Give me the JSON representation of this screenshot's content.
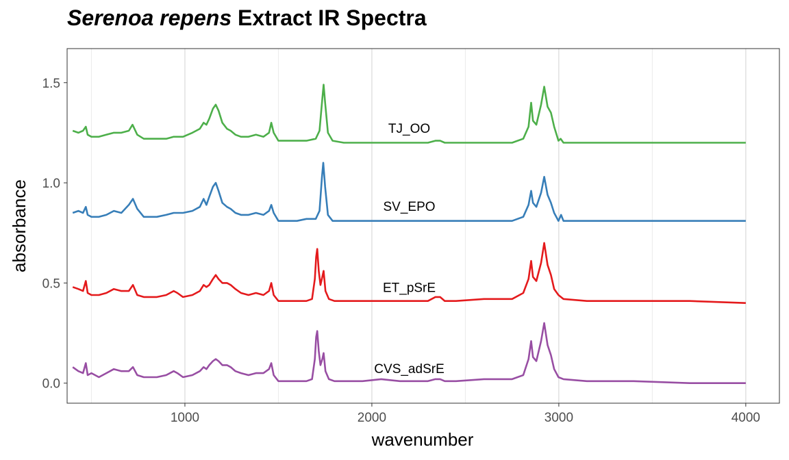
{
  "title": {
    "italic": "Serenoa repens",
    "rest": " Extract IR Spectra"
  },
  "chart_data": {
    "type": "line",
    "title": "Serenoa repens Extract IR Spectra",
    "xlabel": "wavenumber",
    "ylabel": "absorbance",
    "xlim": [
      370,
      4180
    ],
    "ylim": [
      -0.1,
      1.67
    ],
    "x_ticks": [
      1000,
      2000,
      3000,
      4000
    ],
    "y_ticks": [
      0.0,
      0.5,
      1.0,
      1.5
    ],
    "x_tick_labels": [
      "1000",
      "2000",
      "3000",
      "4000"
    ],
    "y_tick_labels": [
      "0.0",
      "0.5",
      "1.0",
      "1.5"
    ],
    "grid": true,
    "series": [
      {
        "name": "TJ_OO",
        "color": "#4DAF4A",
        "label_x": 2200,
        "label_y": 1.25,
        "points": [
          [
            400,
            1.26
          ],
          [
            430,
            1.25
          ],
          [
            455,
            1.26
          ],
          [
            470,
            1.28
          ],
          [
            480,
            1.24
          ],
          [
            500,
            1.23
          ],
          [
            540,
            1.23
          ],
          [
            580,
            1.24
          ],
          [
            620,
            1.25
          ],
          [
            660,
            1.25
          ],
          [
            700,
            1.26
          ],
          [
            720,
            1.29
          ],
          [
            745,
            1.24
          ],
          [
            780,
            1.22
          ],
          [
            850,
            1.22
          ],
          [
            900,
            1.22
          ],
          [
            940,
            1.23
          ],
          [
            990,
            1.23
          ],
          [
            1040,
            1.25
          ],
          [
            1080,
            1.27
          ],
          [
            1100,
            1.3
          ],
          [
            1115,
            1.29
          ],
          [
            1130,
            1.32
          ],
          [
            1150,
            1.37
          ],
          [
            1165,
            1.39
          ],
          [
            1180,
            1.36
          ],
          [
            1200,
            1.3
          ],
          [
            1225,
            1.27
          ],
          [
            1245,
            1.26
          ],
          [
            1270,
            1.24
          ],
          [
            1300,
            1.23
          ],
          [
            1340,
            1.23
          ],
          [
            1380,
            1.24
          ],
          [
            1420,
            1.23
          ],
          [
            1450,
            1.25
          ],
          [
            1462,
            1.3
          ],
          [
            1475,
            1.25
          ],
          [
            1500,
            1.21
          ],
          [
            1550,
            1.21
          ],
          [
            1600,
            1.21
          ],
          [
            1650,
            1.21
          ],
          [
            1700,
            1.22
          ],
          [
            1720,
            1.26
          ],
          [
            1735,
            1.42
          ],
          [
            1742,
            1.49
          ],
          [
            1750,
            1.4
          ],
          [
            1765,
            1.25
          ],
          [
            1790,
            1.21
          ],
          [
            1850,
            1.2
          ],
          [
            1950,
            1.2
          ],
          [
            2050,
            1.2
          ],
          [
            2150,
            1.2
          ],
          [
            2250,
            1.2
          ],
          [
            2300,
            1.2
          ],
          [
            2340,
            1.21
          ],
          [
            2365,
            1.21
          ],
          [
            2390,
            1.2
          ],
          [
            2450,
            1.2
          ],
          [
            2600,
            1.2
          ],
          [
            2750,
            1.2
          ],
          [
            2810,
            1.22
          ],
          [
            2838,
            1.28
          ],
          [
            2852,
            1.4
          ],
          [
            2862,
            1.31
          ],
          [
            2880,
            1.29
          ],
          [
            2905,
            1.39
          ],
          [
            2922,
            1.48
          ],
          [
            2940,
            1.38
          ],
          [
            2958,
            1.35
          ],
          [
            2975,
            1.28
          ],
          [
            2998,
            1.21
          ],
          [
            3010,
            1.22
          ],
          [
            3025,
            1.2
          ],
          [
            3150,
            1.2
          ],
          [
            3400,
            1.2
          ],
          [
            3700,
            1.2
          ],
          [
            4000,
            1.2
          ]
        ]
      },
      {
        "name": "SV_EPO",
        "color": "#377EB8",
        "label_x": 2200,
        "label_y": 0.86,
        "points": [
          [
            400,
            0.85
          ],
          [
            430,
            0.86
          ],
          [
            455,
            0.85
          ],
          [
            470,
            0.88
          ],
          [
            480,
            0.84
          ],
          [
            500,
            0.83
          ],
          [
            540,
            0.83
          ],
          [
            580,
            0.84
          ],
          [
            620,
            0.86
          ],
          [
            660,
            0.85
          ],
          [
            700,
            0.89
          ],
          [
            722,
            0.92
          ],
          [
            745,
            0.87
          ],
          [
            780,
            0.83
          ],
          [
            850,
            0.83
          ],
          [
            900,
            0.84
          ],
          [
            940,
            0.85
          ],
          [
            990,
            0.85
          ],
          [
            1040,
            0.86
          ],
          [
            1080,
            0.88
          ],
          [
            1100,
            0.92
          ],
          [
            1115,
            0.89
          ],
          [
            1130,
            0.93
          ],
          [
            1150,
            0.98
          ],
          [
            1165,
            1.0
          ],
          [
            1180,
            0.96
          ],
          [
            1200,
            0.9
          ],
          [
            1225,
            0.88
          ],
          [
            1245,
            0.87
          ],
          [
            1270,
            0.85
          ],
          [
            1300,
            0.84
          ],
          [
            1340,
            0.84
          ],
          [
            1380,
            0.85
          ],
          [
            1420,
            0.84
          ],
          [
            1450,
            0.86
          ],
          [
            1462,
            0.89
          ],
          [
            1475,
            0.85
          ],
          [
            1500,
            0.81
          ],
          [
            1550,
            0.81
          ],
          [
            1600,
            0.81
          ],
          [
            1650,
            0.82
          ],
          [
            1700,
            0.82
          ],
          [
            1720,
            0.86
          ],
          [
            1733,
            1.03
          ],
          [
            1740,
            1.1
          ],
          [
            1750,
            0.98
          ],
          [
            1765,
            0.84
          ],
          [
            1790,
            0.81
          ],
          [
            1850,
            0.81
          ],
          [
            1950,
            0.81
          ],
          [
            2050,
            0.81
          ],
          [
            2150,
            0.81
          ],
          [
            2250,
            0.81
          ],
          [
            2350,
            0.81
          ],
          [
            2450,
            0.81
          ],
          [
            2600,
            0.81
          ],
          [
            2750,
            0.81
          ],
          [
            2810,
            0.83
          ],
          [
            2838,
            0.89
          ],
          [
            2852,
            0.96
          ],
          [
            2862,
            0.9
          ],
          [
            2880,
            0.88
          ],
          [
            2905,
            0.95
          ],
          [
            2922,
            1.03
          ],
          [
            2940,
            0.94
          ],
          [
            2958,
            0.9
          ],
          [
            2975,
            0.85
          ],
          [
            2998,
            0.81
          ],
          [
            3012,
            0.84
          ],
          [
            3025,
            0.81
          ],
          [
            3150,
            0.81
          ],
          [
            3400,
            0.81
          ],
          [
            3700,
            0.81
          ],
          [
            4000,
            0.81
          ]
        ]
      },
      {
        "name": "ET_pSrE",
        "color": "#E41A1C",
        "label_x": 2200,
        "label_y": 0.455,
        "points": [
          [
            400,
            0.48
          ],
          [
            430,
            0.47
          ],
          [
            455,
            0.46
          ],
          [
            470,
            0.51
          ],
          [
            480,
            0.45
          ],
          [
            500,
            0.44
          ],
          [
            540,
            0.44
          ],
          [
            580,
            0.45
          ],
          [
            620,
            0.47
          ],
          [
            660,
            0.46
          ],
          [
            700,
            0.46
          ],
          [
            722,
            0.49
          ],
          [
            745,
            0.44
          ],
          [
            780,
            0.43
          ],
          [
            850,
            0.43
          ],
          [
            900,
            0.44
          ],
          [
            940,
            0.46
          ],
          [
            960,
            0.45
          ],
          [
            990,
            0.43
          ],
          [
            1040,
            0.44
          ],
          [
            1080,
            0.46
          ],
          [
            1100,
            0.49
          ],
          [
            1115,
            0.48
          ],
          [
            1130,
            0.49
          ],
          [
            1150,
            0.52
          ],
          [
            1165,
            0.54
          ],
          [
            1180,
            0.52
          ],
          [
            1200,
            0.5
          ],
          [
            1225,
            0.5
          ],
          [
            1245,
            0.49
          ],
          [
            1270,
            0.47
          ],
          [
            1300,
            0.45
          ],
          [
            1340,
            0.44
          ],
          [
            1380,
            0.45
          ],
          [
            1420,
            0.44
          ],
          [
            1450,
            0.46
          ],
          [
            1462,
            0.5
          ],
          [
            1475,
            0.44
          ],
          [
            1500,
            0.41
          ],
          [
            1550,
            0.41
          ],
          [
            1600,
            0.41
          ],
          [
            1650,
            0.41
          ],
          [
            1680,
            0.42
          ],
          [
            1695,
            0.52
          ],
          [
            1702,
            0.63
          ],
          [
            1708,
            0.67
          ],
          [
            1716,
            0.56
          ],
          [
            1725,
            0.49
          ],
          [
            1735,
            0.53
          ],
          [
            1742,
            0.56
          ],
          [
            1752,
            0.46
          ],
          [
            1770,
            0.42
          ],
          [
            1800,
            0.41
          ],
          [
            1850,
            0.41
          ],
          [
            1950,
            0.41
          ],
          [
            2050,
            0.41
          ],
          [
            2150,
            0.41
          ],
          [
            2250,
            0.41
          ],
          [
            2300,
            0.41
          ],
          [
            2340,
            0.43
          ],
          [
            2365,
            0.43
          ],
          [
            2390,
            0.41
          ],
          [
            2450,
            0.41
          ],
          [
            2600,
            0.42
          ],
          [
            2750,
            0.42
          ],
          [
            2810,
            0.45
          ],
          [
            2838,
            0.52
          ],
          [
            2852,
            0.61
          ],
          [
            2862,
            0.53
          ],
          [
            2880,
            0.51
          ],
          [
            2905,
            0.6
          ],
          [
            2922,
            0.7
          ],
          [
            2940,
            0.59
          ],
          [
            2958,
            0.54
          ],
          [
            2975,
            0.47
          ],
          [
            2998,
            0.44
          ],
          [
            3025,
            0.42
          ],
          [
            3150,
            0.41
          ],
          [
            3400,
            0.41
          ],
          [
            3700,
            0.41
          ],
          [
            4000,
            0.4
          ]
        ]
      },
      {
        "name": "CVS_adSrE",
        "color": "#984EA3",
        "label_x": 2200,
        "label_y": 0.05,
        "points": [
          [
            400,
            0.08
          ],
          [
            430,
            0.06
          ],
          [
            455,
            0.05
          ],
          [
            470,
            0.1
          ],
          [
            480,
            0.04
          ],
          [
            500,
            0.05
          ],
          [
            540,
            0.03
          ],
          [
            580,
            0.05
          ],
          [
            620,
            0.07
          ],
          [
            660,
            0.06
          ],
          [
            700,
            0.06
          ],
          [
            722,
            0.08
          ],
          [
            745,
            0.04
          ],
          [
            780,
            0.03
          ],
          [
            850,
            0.03
          ],
          [
            900,
            0.04
          ],
          [
            940,
            0.06
          ],
          [
            960,
            0.05
          ],
          [
            990,
            0.03
          ],
          [
            1040,
            0.04
          ],
          [
            1080,
            0.06
          ],
          [
            1100,
            0.08
          ],
          [
            1115,
            0.07
          ],
          [
            1130,
            0.09
          ],
          [
            1150,
            0.11
          ],
          [
            1165,
            0.12
          ],
          [
            1180,
            0.11
          ],
          [
            1200,
            0.09
          ],
          [
            1225,
            0.09
          ],
          [
            1245,
            0.08
          ],
          [
            1270,
            0.06
          ],
          [
            1300,
            0.05
          ],
          [
            1340,
            0.04
          ],
          [
            1380,
            0.05
          ],
          [
            1420,
            0.05
          ],
          [
            1450,
            0.07
          ],
          [
            1462,
            0.1
          ],
          [
            1475,
            0.04
          ],
          [
            1500,
            0.01
          ],
          [
            1550,
            0.01
          ],
          [
            1600,
            0.01
          ],
          [
            1650,
            0.01
          ],
          [
            1680,
            0.02
          ],
          [
            1695,
            0.12
          ],
          [
            1702,
            0.23
          ],
          [
            1708,
            0.26
          ],
          [
            1716,
            0.16
          ],
          [
            1725,
            0.09
          ],
          [
            1735,
            0.12
          ],
          [
            1742,
            0.15
          ],
          [
            1752,
            0.06
          ],
          [
            1770,
            0.02
          ],
          [
            1800,
            0.01
          ],
          [
            1850,
            0.01
          ],
          [
            1950,
            0.01
          ],
          [
            2050,
            0.02
          ],
          [
            2150,
            0.01
          ],
          [
            2250,
            0.01
          ],
          [
            2300,
            0.01
          ],
          [
            2340,
            0.02
          ],
          [
            2365,
            0.02
          ],
          [
            2390,
            0.01
          ],
          [
            2450,
            0.01
          ],
          [
            2600,
            0.02
          ],
          [
            2750,
            0.02
          ],
          [
            2810,
            0.04
          ],
          [
            2838,
            0.12
          ],
          [
            2852,
            0.21
          ],
          [
            2862,
            0.13
          ],
          [
            2880,
            0.11
          ],
          [
            2905,
            0.21
          ],
          [
            2922,
            0.3
          ],
          [
            2940,
            0.19
          ],
          [
            2958,
            0.14
          ],
          [
            2975,
            0.07
          ],
          [
            2998,
            0.03
          ],
          [
            3025,
            0.02
          ],
          [
            3150,
            0.01
          ],
          [
            3400,
            0.01
          ],
          [
            3700,
            0.0
          ],
          [
            4000,
            0.0
          ]
        ]
      }
    ]
  }
}
